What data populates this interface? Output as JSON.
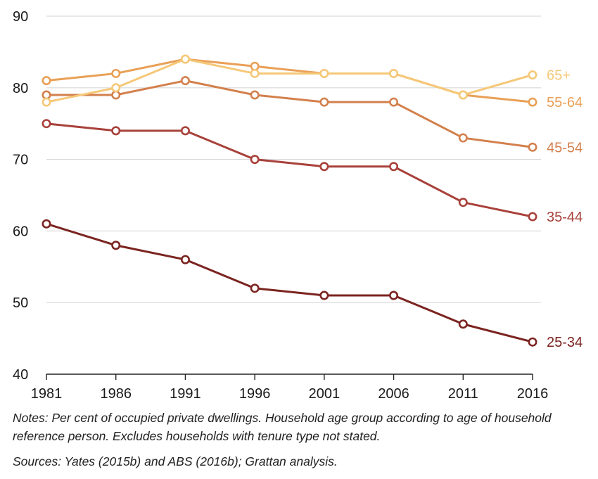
{
  "chart_data": {
    "type": "line",
    "x": [
      "1981",
      "1986",
      "1991",
      "1996",
      "2001",
      "2006",
      "2011",
      "2016"
    ],
    "ylim": [
      40,
      90
    ],
    "yticks": [
      40,
      50,
      60,
      70,
      80,
      90
    ],
    "grid": true,
    "legend": "direct-labels-right",
    "series": [
      {
        "name": "25-34",
        "color": "#7b2420",
        "values": [
          61,
          58,
          56,
          52,
          51,
          51,
          47,
          44.5
        ]
      },
      {
        "name": "35-44",
        "color": "#a8413a",
        "values": [
          75,
          74,
          74,
          70,
          69,
          69,
          64,
          62
        ]
      },
      {
        "name": "45-54",
        "color": "#d3804d",
        "values": [
          79,
          79,
          81,
          79,
          78,
          78,
          73,
          71.7
        ]
      },
      {
        "name": "55-64",
        "color": "#e9a057",
        "values": [
          81,
          82,
          84,
          83,
          82,
          82,
          79,
          78
        ]
      },
      {
        "name": "65+",
        "color": "#f5c878",
        "values": [
          78,
          80,
          84,
          82,
          82,
          82,
          79,
          81.8
        ]
      }
    ]
  },
  "notes": "Notes: Per cent of occupied private dwellings. Household age group according to age of household reference person. Excludes households with tenure type not stated.",
  "sources": "Sources: Yates (2015b) and ABS (2016b); Grattan analysis."
}
